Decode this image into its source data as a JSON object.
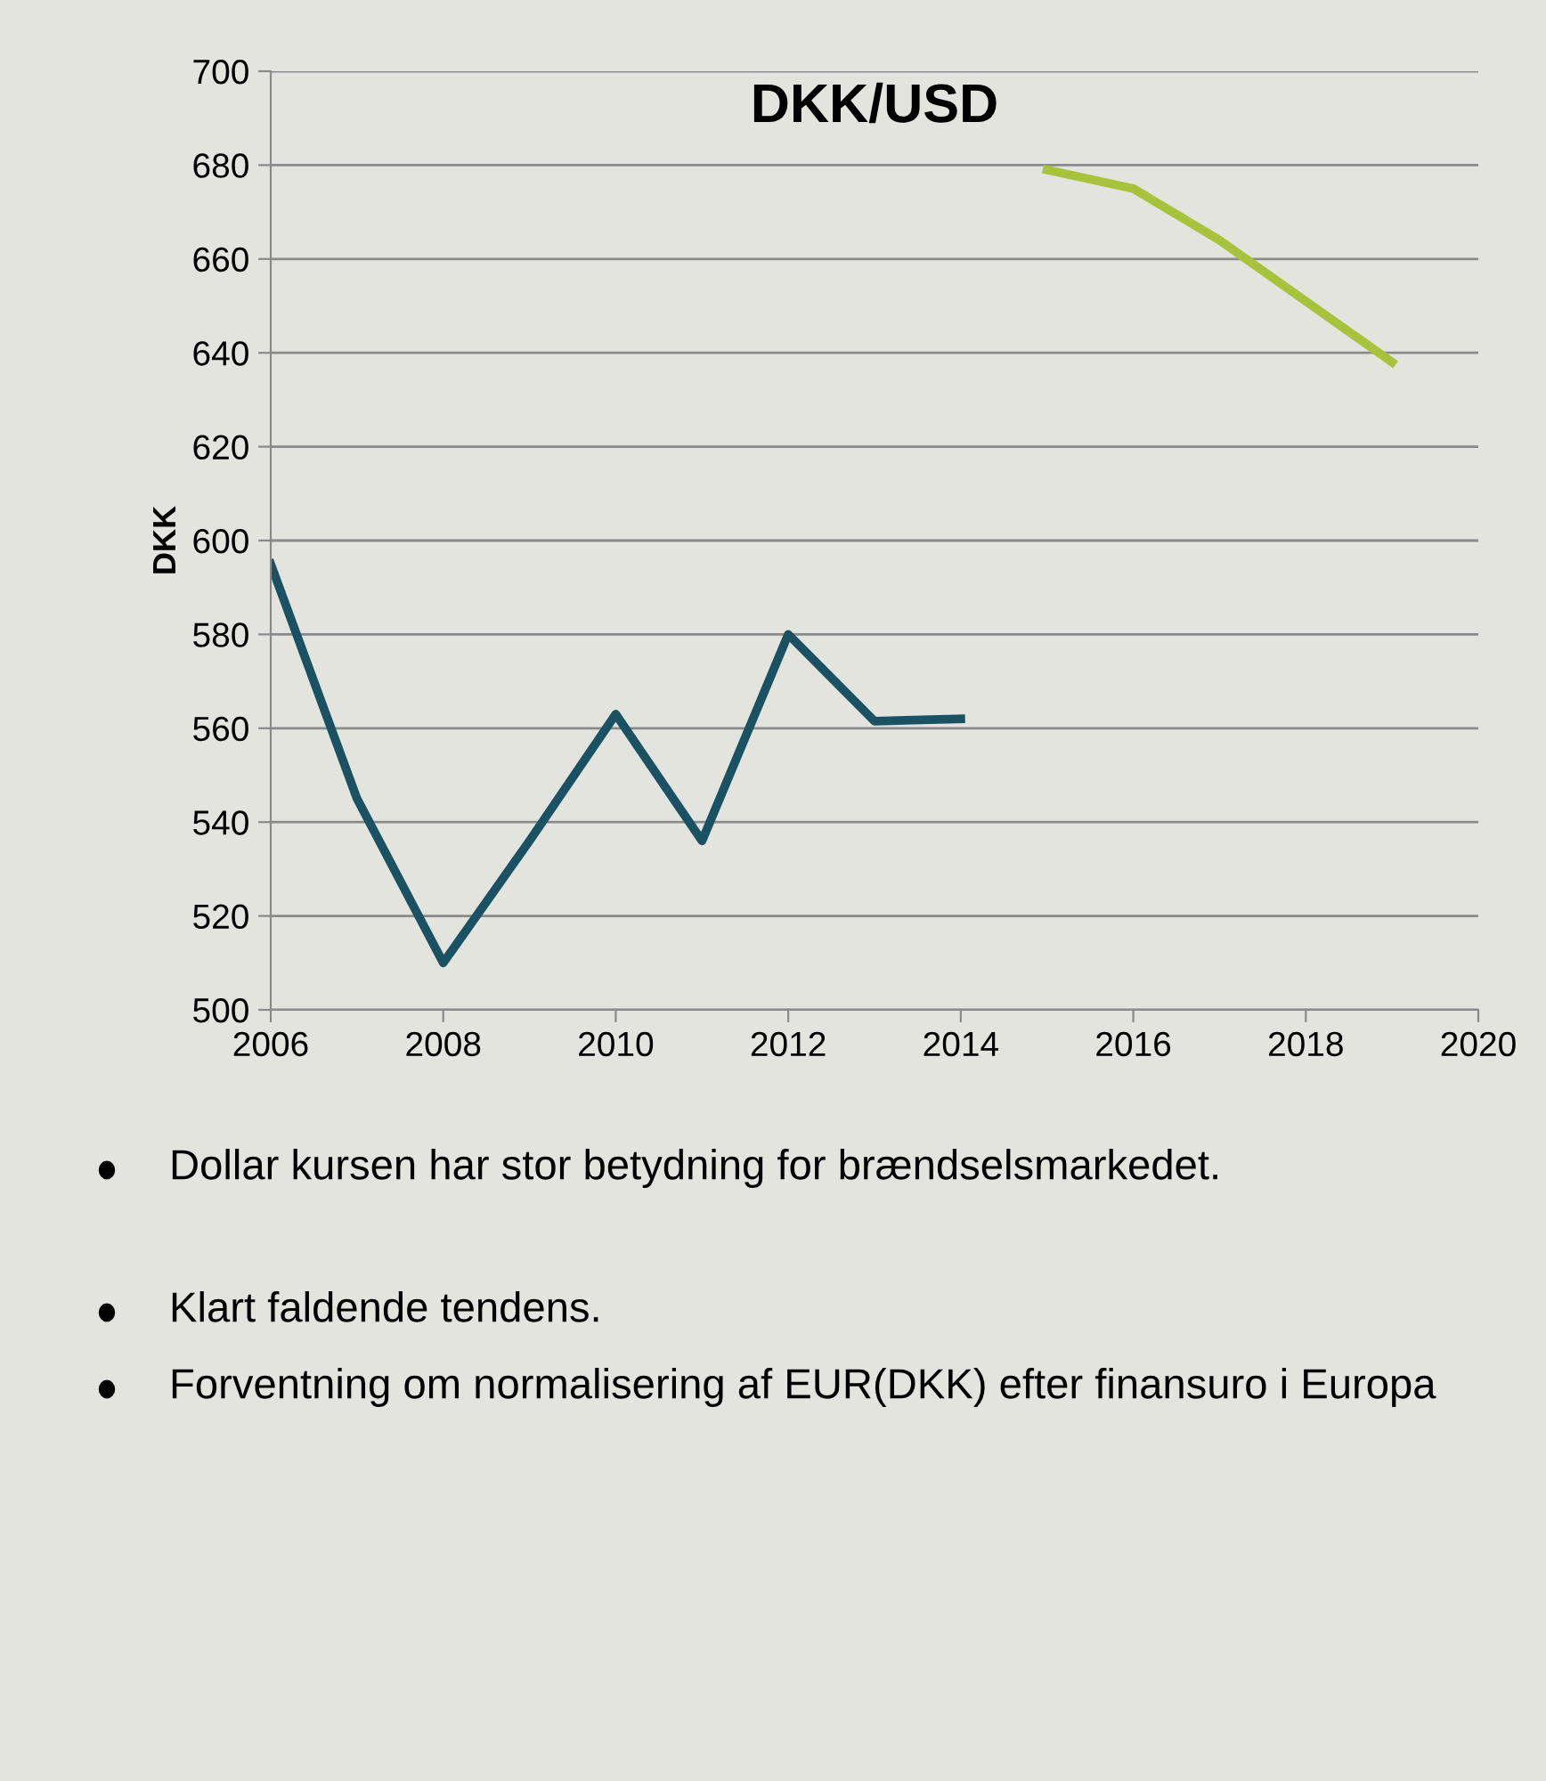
{
  "chart_data": {
    "type": "line",
    "title": "DKK/USD",
    "ylabel": "DKK",
    "series": [
      {
        "color": "#1a5263",
        "x": [
          2006,
          2007,
          2008,
          2009,
          2010,
          2011,
          2012,
          2013,
          2014
        ],
        "values": [
          595,
          545,
          510,
          536,
          563,
          536,
          580,
          561.5,
          562
        ]
      },
      {
        "color": "#a9c23b",
        "x": [
          2015,
          2016,
          2017,
          2018,
          2019
        ],
        "values": [
          679,
          675,
          664,
          651,
          638
        ]
      }
    ],
    "xlim": [
      2006,
      2020
    ],
    "xticks": [
      2006,
      2008,
      2010,
      2012,
      2014,
      2016,
      2018,
      2020
    ],
    "ylim": [
      500,
      700
    ],
    "yticks": [
      500,
      520,
      540,
      560,
      580,
      600,
      620,
      640,
      660,
      680,
      700
    ],
    "grid": "y",
    "legend": false,
    "marker": "none",
    "line_style": "solid",
    "annotations": [
      "Dollar kursen har stor betydning for brændselsmarkedet.",
      "Klart faldende tendens.",
      "Forventning om normalisering af EUR(DKK) efter finansuro i Europa"
    ]
  }
}
